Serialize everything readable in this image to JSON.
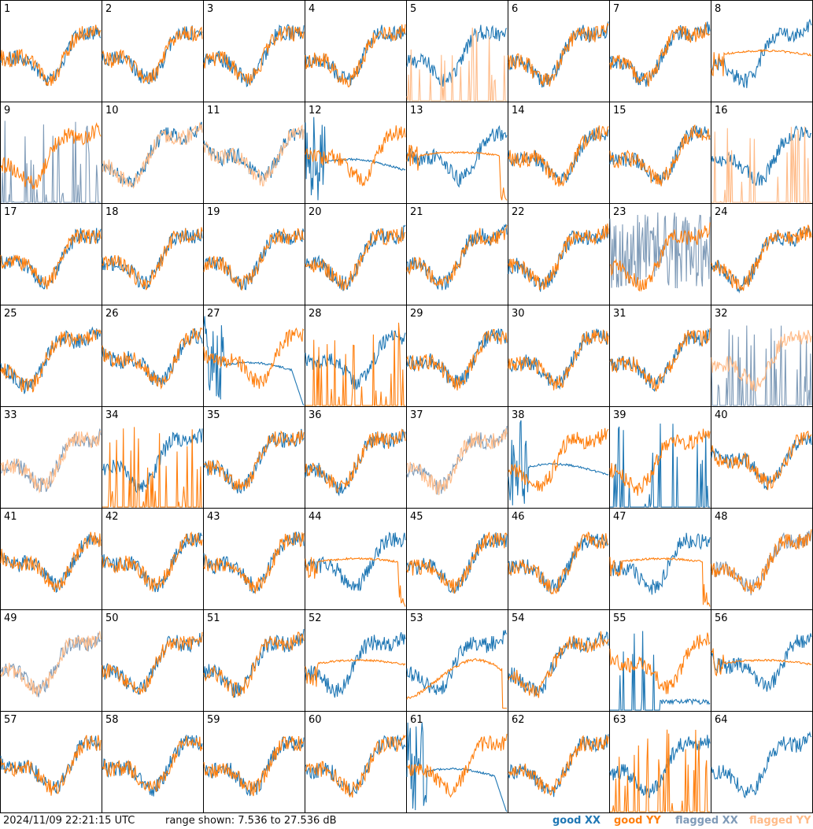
{
  "footer": {
    "timestamp": "2024/11/09 22:21:15 UTC",
    "range_text": "range shown: 7.536 to 27.536 dB",
    "legend": [
      "good XX",
      "good YY",
      "flagged XX",
      "flagged YY"
    ]
  },
  "colors": {
    "good_xx": "#1f77b4",
    "good_yy": "#ff7f0e",
    "flagged_xx": "#7f9bb8",
    "flagged_yy": "#ffbb88",
    "frame": "#000000"
  },
  "chart_data": {
    "type": "line",
    "title": "",
    "ylim": [
      7.536,
      27.536
    ],
    "units": "dB",
    "grid": "8x8 small multiples",
    "panels": [
      {
        "id": 1,
        "xx": "good",
        "yy": "good",
        "shape": "bumpy"
      },
      {
        "id": 2,
        "xx": "good",
        "yy": "good",
        "shape": "normal"
      },
      {
        "id": 3,
        "xx": "good",
        "yy": "good",
        "shape": "normal"
      },
      {
        "id": 4,
        "xx": "good",
        "yy": "good",
        "shape": "normal"
      },
      {
        "id": 5,
        "xx": "good",
        "yy": "flagged",
        "shape": "yy_spikes"
      },
      {
        "id": 6,
        "xx": "good",
        "yy": "good",
        "shape": "normal"
      },
      {
        "id": 7,
        "xx": "good",
        "yy": "good",
        "shape": "normal"
      },
      {
        "id": 8,
        "xx": "good",
        "yy": "good",
        "shape": "yy_smooth"
      },
      {
        "id": 9,
        "xx": "flagged",
        "yy": "good",
        "shape": "xx_spikes"
      },
      {
        "id": 10,
        "xx": "good",
        "yy": "flagged",
        "shape": "normal"
      },
      {
        "id": 11,
        "xx": "good",
        "yy": "flagged",
        "shape": "normal"
      },
      {
        "id": 12,
        "xx": "good",
        "yy": "good",
        "shape": "xx_smooth"
      },
      {
        "id": 13,
        "xx": "good",
        "yy": "good",
        "shape": "yy_smooth_drop"
      },
      {
        "id": 14,
        "xx": "good",
        "yy": "good",
        "shape": "normal"
      },
      {
        "id": 15,
        "xx": "good",
        "yy": "good",
        "shape": "normal"
      },
      {
        "id": 16,
        "xx": "good",
        "yy": "flagged",
        "shape": "yy_spikes"
      },
      {
        "id": 17,
        "xx": "good",
        "yy": "good",
        "shape": "normal"
      },
      {
        "id": 18,
        "xx": "good",
        "yy": "good",
        "shape": "normal"
      },
      {
        "id": 19,
        "xx": "good",
        "yy": "good",
        "shape": "normal"
      },
      {
        "id": 20,
        "xx": "good",
        "yy": "good",
        "shape": "normal"
      },
      {
        "id": 21,
        "xx": "good",
        "yy": "good",
        "shape": "normal"
      },
      {
        "id": 22,
        "xx": "good",
        "yy": "good",
        "shape": "normal"
      },
      {
        "id": 23,
        "xx": "flagged",
        "yy": "good",
        "shape": "xx_noisy_low"
      },
      {
        "id": 24,
        "xx": "good",
        "yy": "good",
        "shape": "normal"
      },
      {
        "id": 25,
        "xx": "good",
        "yy": "good",
        "shape": "normal"
      },
      {
        "id": 26,
        "xx": "good",
        "yy": "good",
        "shape": "normal"
      },
      {
        "id": 27,
        "xx": "good",
        "yy": "good",
        "shape": "xx_smooth_drop"
      },
      {
        "id": 28,
        "xx": "good",
        "yy": "good",
        "shape": "yy_spikes_only"
      },
      {
        "id": 29,
        "xx": "good",
        "yy": "good",
        "shape": "normal"
      },
      {
        "id": 30,
        "xx": "good",
        "yy": "good",
        "shape": "normal"
      },
      {
        "id": 31,
        "xx": "good",
        "yy": "good",
        "shape": "normal"
      },
      {
        "id": 32,
        "xx": "flagged",
        "yy": "flagged",
        "shape": "xx_spikes"
      },
      {
        "id": 33,
        "xx": "flagged",
        "yy": "flagged",
        "shape": "normal"
      },
      {
        "id": 34,
        "xx": "good",
        "yy": "good",
        "shape": "yy_spikes_xx_high"
      },
      {
        "id": 35,
        "xx": "good",
        "yy": "good",
        "shape": "normal"
      },
      {
        "id": 36,
        "xx": "good",
        "yy": "good",
        "shape": "normal"
      },
      {
        "id": 37,
        "xx": "flagged",
        "yy": "flagged",
        "shape": "normal"
      },
      {
        "id": 38,
        "xx": "good",
        "yy": "good",
        "shape": "xx_smooth"
      },
      {
        "id": 39,
        "xx": "good",
        "yy": "good",
        "shape": "xx_spikes"
      },
      {
        "id": 40,
        "xx": "good",
        "yy": "good",
        "shape": "normal"
      },
      {
        "id": 41,
        "xx": "good",
        "yy": "good",
        "shape": "normal"
      },
      {
        "id": 42,
        "xx": "good",
        "yy": "good",
        "shape": "normal"
      },
      {
        "id": 43,
        "xx": "good",
        "yy": "good",
        "shape": "normal"
      },
      {
        "id": 44,
        "xx": "good",
        "yy": "good",
        "shape": "yy_smooth_drop"
      },
      {
        "id": 45,
        "xx": "good",
        "yy": "good",
        "shape": "normal"
      },
      {
        "id": 46,
        "xx": "good",
        "yy": "good",
        "shape": "normal"
      },
      {
        "id": 47,
        "xx": "good",
        "yy": "good",
        "shape": "yy_smooth_drop"
      },
      {
        "id": 48,
        "xx": "flagged",
        "yy": "good",
        "shape": "normal"
      },
      {
        "id": 49,
        "xx": "flagged",
        "yy": "flagged",
        "shape": "normal"
      },
      {
        "id": 50,
        "xx": "good",
        "yy": "good",
        "shape": "normal"
      },
      {
        "id": 51,
        "xx": "good",
        "yy": "good",
        "shape": "normal"
      },
      {
        "id": 52,
        "xx": "good",
        "yy": "good",
        "shape": "yy_smooth"
      },
      {
        "id": 53,
        "xx": "good",
        "yy": "good",
        "shape": "yy_dip_drop"
      },
      {
        "id": 54,
        "xx": "good",
        "yy": "good",
        "shape": "normal"
      },
      {
        "id": 55,
        "xx": "good",
        "yy": "good",
        "shape": "xx_spikes_low"
      },
      {
        "id": 56,
        "xx": "good",
        "yy": "good",
        "shape": "yy_smooth"
      },
      {
        "id": 57,
        "xx": "good",
        "yy": "good",
        "shape": "normal"
      },
      {
        "id": 58,
        "xx": "good",
        "yy": "good",
        "shape": "normal"
      },
      {
        "id": 59,
        "xx": "good",
        "yy": "good",
        "shape": "normal"
      },
      {
        "id": 60,
        "xx": "good",
        "yy": "good",
        "shape": "normal"
      },
      {
        "id": 61,
        "xx": "good",
        "yy": "good",
        "shape": "xx_smooth_drop"
      },
      {
        "id": 62,
        "xx": "good",
        "yy": "good",
        "shape": "normal"
      },
      {
        "id": 63,
        "xx": "good",
        "yy": "good",
        "shape": "yy_spikes_only"
      },
      {
        "id": 64,
        "xx": "good",
        "yy": "good",
        "shape": "xx_only"
      }
    ]
  }
}
